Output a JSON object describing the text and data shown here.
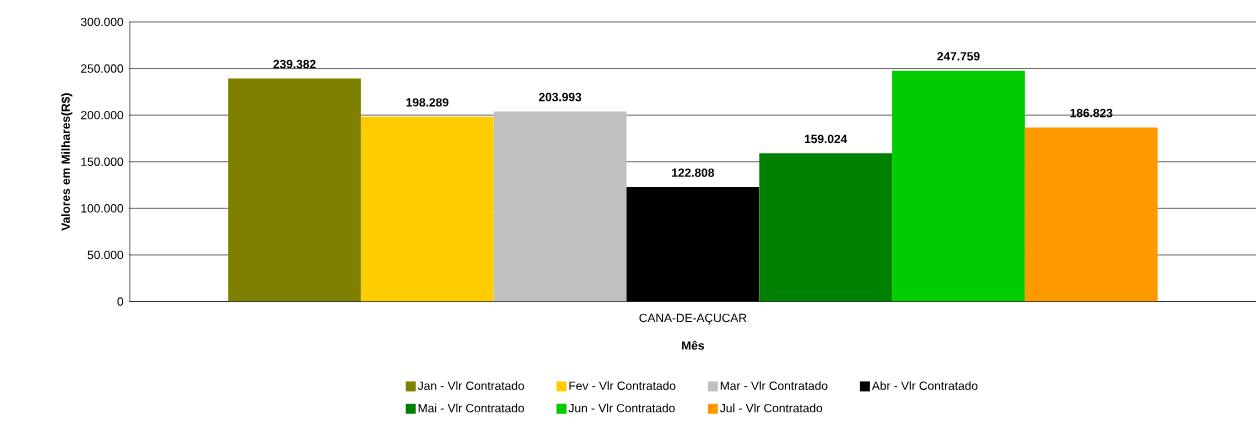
{
  "chart_data": {
    "type": "bar",
    "xlabel": "Mês",
    "ylabel": "Valores em Milhares(R$)",
    "categories": [
      "CANA-DE-AÇUCAR"
    ],
    "series": [
      {
        "name": "Jan - Vlr Contratado",
        "color": "#808000",
        "values": [
          239382
        ],
        "value_labels": [
          "239.382"
        ]
      },
      {
        "name": "Fev - Vlr Contratado",
        "color": "#ffcc00",
        "values": [
          198289
        ],
        "value_labels": [
          "198.289"
        ]
      },
      {
        "name": "Mar - Vlr Contratado",
        "color": "#c0c0c0",
        "values": [
          203993
        ],
        "value_labels": [
          "203.993"
        ]
      },
      {
        "name": "Abr - Vlr Contratado",
        "color": "#000000",
        "values": [
          122808
        ],
        "value_labels": [
          "122.808"
        ]
      },
      {
        "name": "Mai - Vlr Contratado",
        "color": "#008000",
        "values": [
          159024
        ],
        "value_labels": [
          "159.024"
        ]
      },
      {
        "name": "Jun - Vlr Contratado",
        "color": "#00cc00",
        "values": [
          247759
        ],
        "value_labels": [
          "247.759"
        ]
      },
      {
        "name": "Jul - Vlr Contratado",
        "color": "#ff9900",
        "values": [
          186823
        ],
        "value_labels": [
          "186.823"
        ]
      }
    ],
    "ylim": [
      0,
      300000
    ],
    "yticks": [
      {
        "value": 0,
        "label": "0"
      },
      {
        "value": 50000,
        "label": "50.000"
      },
      {
        "value": 100000,
        "label": "100.000"
      },
      {
        "value": 150000,
        "label": "150.000"
      },
      {
        "value": 200000,
        "label": "200.000"
      },
      {
        "value": 250000,
        "label": "250.000"
      },
      {
        "value": 300000,
        "label": "300.000"
      }
    ],
    "grid": "y",
    "legend": "bottom"
  }
}
